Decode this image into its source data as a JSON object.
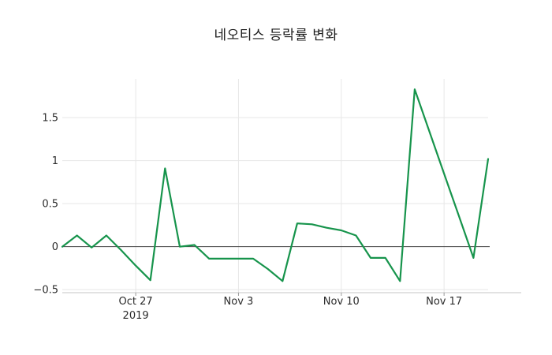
{
  "chart_data": {
    "type": "line",
    "title": "네오티스 등락률 변화",
    "series_name": "등락률",
    "line_color": "#17944c",
    "x": [
      "2019-10-22",
      "2019-10-23",
      "2019-10-24",
      "2019-10-25",
      "2019-10-26",
      "2019-10-27",
      "2019-10-28",
      "2019-10-29",
      "2019-10-30",
      "2019-10-31",
      "2019-11-01",
      "2019-11-02",
      "2019-11-03",
      "2019-11-04",
      "2019-11-05",
      "2019-11-06",
      "2019-11-07",
      "2019-11-08",
      "2019-11-09",
      "2019-11-10",
      "2019-11-11",
      "2019-11-12",
      "2019-11-13",
      "2019-11-14",
      "2019-11-15",
      "2019-11-16",
      "2019-11-17",
      "2019-11-18",
      "2019-11-19",
      "2019-11-20"
    ],
    "values": [
      0.0,
      0.13,
      -0.01,
      0.13,
      -0.04,
      -0.22,
      -0.39,
      0.91,
      0.0,
      0.02,
      -0.14,
      -0.14,
      -0.14,
      -0.14,
      -0.26,
      -0.4,
      0.27,
      0.26,
      0.22,
      0.19,
      0.13,
      -0.13,
      -0.13,
      -0.4,
      1.83,
      1.34,
      0.85,
      0.36,
      -0.13,
      1.02
    ],
    "ylim": [
      -0.535,
      1.951
    ],
    "yticks": [
      -0.5,
      0,
      0.5,
      1,
      1.5
    ],
    "ytick_labels": [
      "−0.5",
      "0",
      "0.5",
      "1",
      "1.5"
    ],
    "xticks": [
      {
        "index": 5,
        "lines": [
          "Oct 27",
          "2019"
        ]
      },
      {
        "index": 12,
        "lines": [
          "Nov 3"
        ]
      },
      {
        "index": 19,
        "lines": [
          "Nov 10"
        ]
      },
      {
        "index": 26,
        "lines": [
          "Nov 17"
        ]
      }
    ],
    "grid": true,
    "zero_line": true,
    "legend_position": "none",
    "colors": {
      "grid": "#e7e7e7",
      "zero_line": "#454545",
      "axis_spine": "#c4c4c4",
      "tick_mark": "#999999",
      "label_text": "#2b2b2b",
      "background": "#ffffff"
    }
  }
}
